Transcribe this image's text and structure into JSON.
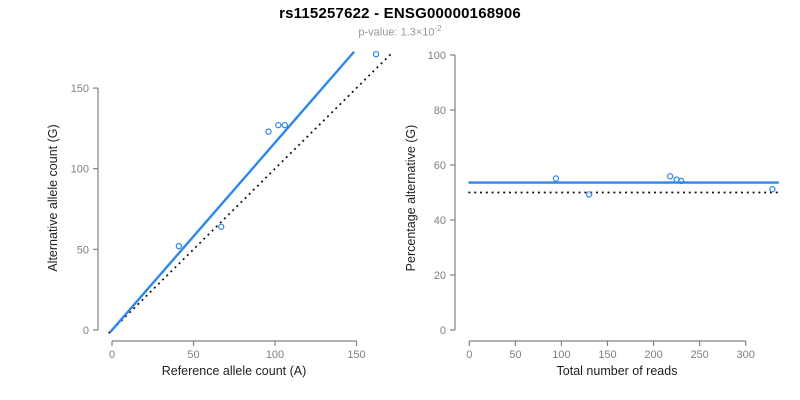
{
  "header": {
    "title": "rs115257622 - ENSG00000168906",
    "p_value_label": "p-value: ",
    "p_value_base": "1.3×10",
    "p_value_exponent": "-2"
  },
  "colors": {
    "accent": "#2d87eb",
    "axis": "#828282",
    "tick_label": "#808080",
    "axis_title": "#1f1f1f",
    "title_text": "#000000",
    "subtitle_text": "#979797",
    "reference_line": "#111111",
    "background": "#ffffff"
  },
  "chart_data": [
    {
      "id": "allele-counts-scatter",
      "type": "scatter",
      "xlabel": "Reference allele count (A)",
      "ylabel": "Alternative allele count (G)",
      "xticks": [
        0,
        50,
        100,
        150
      ],
      "yticks": [
        0,
        50,
        100,
        150
      ],
      "xlim": [
        -8,
        171
      ],
      "ylim": [
        -7,
        176
      ],
      "grid": false,
      "marker": "open-circle",
      "points": [
        [
          41,
          52
        ],
        [
          67,
          64
        ],
        [
          96,
          123
        ],
        [
          102,
          127
        ],
        [
          106,
          127
        ],
        [
          162,
          171
        ]
      ],
      "lines": [
        {
          "name": "identity-line",
          "style": "dotted",
          "color_key": "reference_line",
          "from": [
            -2,
            -2
          ],
          "to": [
            171,
            171
          ]
        },
        {
          "name": "fitted-proportion-line",
          "style": "solid",
          "color_key": "accent",
          "from": [
            -1,
            -1.2
          ],
          "to": [
            148.5,
            172.5
          ]
        }
      ]
    },
    {
      "id": "percentage-vs-depth-scatter",
      "type": "scatter",
      "xlabel": "Total number of reads",
      "ylabel": "Percentage alternative (G)",
      "xticks": [
        0,
        50,
        100,
        150,
        200,
        250,
        300
      ],
      "yticks": [
        0,
        20,
        40,
        60,
        80,
        100
      ],
      "xlim": [
        -15,
        338
      ],
      "ylim": [
        0,
        103
      ],
      "grid": false,
      "marker": "open-circle",
      "points": [
        [
          94,
          55.1
        ],
        [
          130,
          49.3
        ],
        [
          218,
          55.9
        ],
        [
          225,
          54.7
        ],
        [
          230,
          54.2
        ],
        [
          329,
          51.2
        ]
      ],
      "lines": [
        {
          "name": "fifty-percent-line",
          "style": "dotted",
          "color_key": "reference_line",
          "from": [
            -1,
            50
          ],
          "to": [
            336,
            50
          ]
        },
        {
          "name": "mean-percentage-line",
          "style": "solid",
          "color_key": "accent",
          "from": [
            -1,
            53.6
          ],
          "to": [
            336,
            53.6
          ]
        }
      ]
    }
  ]
}
